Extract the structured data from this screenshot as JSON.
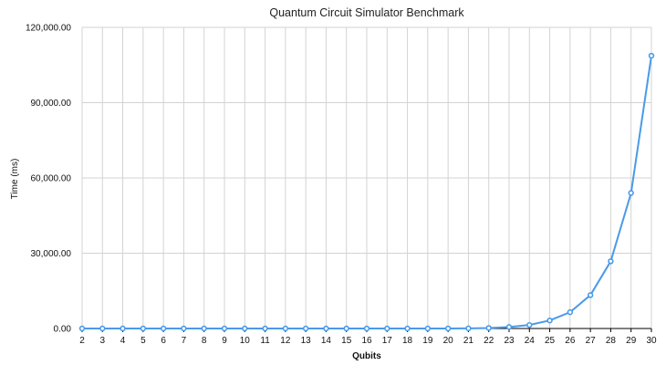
{
  "chart_data": {
    "type": "line",
    "title": "Quantum Circuit Simulator Benchmark",
    "xlabel": "Qubits",
    "ylabel": "Time (ms)",
    "categories": [
      "2",
      "3",
      "4",
      "5",
      "6",
      "7",
      "8",
      "9",
      "10",
      "11",
      "12",
      "13",
      "14",
      "15",
      "16",
      "17",
      "18",
      "19",
      "20",
      "21",
      "22",
      "23",
      "24",
      "25",
      "26",
      "27",
      "28",
      "29",
      "30"
    ],
    "series": [
      {
        "values": [
          0,
          0,
          0,
          0,
          0,
          0,
          0,
          0,
          0,
          0,
          0,
          0,
          0,
          0,
          0,
          1,
          3,
          6,
          12,
          50,
          200,
          600,
          1400,
          3200,
          6500,
          13300,
          26800,
          54000,
          108700
        ]
      }
    ],
    "ylim": [
      0,
      120000
    ],
    "yticks": [
      0,
      30000,
      60000,
      90000,
      120000
    ],
    "ytick_labels": [
      "0.00",
      "30,000.00",
      "60,000.00",
      "90,000.00",
      "120,000.00"
    ],
    "grid": true,
    "legend": "none",
    "colors": {
      "line": "#4a9ae8",
      "grid": "#d3d3d3",
      "axis": "#000000"
    }
  }
}
